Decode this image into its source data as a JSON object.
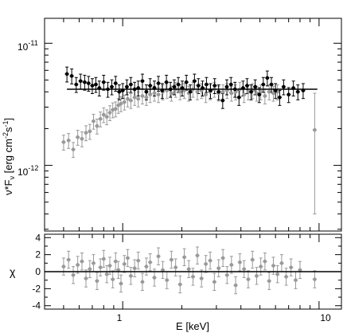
{
  "colors": {
    "axis": "#000000",
    "black_series": "#000000",
    "grey_series": "#999999",
    "background": "#ffffff"
  },
  "chart_data": [
    {
      "type": "scatter",
      "panel": "spectrum",
      "xlabel": "E [keV]",
      "ylabel": "ν*F_ν [erg cm⁻² s⁻¹]",
      "ylabel_parts": {
        "pre": "ν*F",
        "sub": "ν",
        "mid": " [erg cm",
        "sup1": "-2",
        "mid2": "s",
        "sup2": "-1",
        "post": "]"
      },
      "x_scale": "log",
      "y_scale": "log",
      "xlim": [
        0.4,
        13.0
      ],
      "ylim": [
        2.9e-13,
        1.6e-11
      ],
      "x_tick_labels": [
        {
          "value": 1,
          "label": "1"
        },
        {
          "value": 10,
          "label": "10"
        }
      ],
      "y_tick_labels": [
        {
          "value": 1e-11,
          "base": "10",
          "exp": "-11"
        },
        {
          "value": 1e-12,
          "base": "10",
          "exp": "-12"
        }
      ],
      "grid": false,
      "series": [
        {
          "color": "black",
          "x": [
            0.52,
            0.55,
            0.58,
            0.61,
            0.64,
            0.67,
            0.7,
            0.73,
            0.76,
            0.8,
            0.84,
            0.88,
            0.92,
            0.96,
            1.0,
            1.05,
            1.1,
            1.15,
            1.2,
            1.26,
            1.32,
            1.38,
            1.45,
            1.52,
            1.59,
            1.67,
            1.75,
            1.83,
            1.92,
            2.01,
            2.11,
            2.21,
            2.32,
            2.43,
            2.55,
            2.67,
            2.8,
            2.94,
            3.08,
            3.23,
            3.39,
            3.56,
            3.73,
            3.91,
            4.1,
            4.3,
            4.51,
            4.73,
            4.96,
            5.2,
            5.45,
            5.72,
            6.0,
            6.3,
            6.6,
            7.0,
            7.4,
            7.8,
            8.3
          ],
          "y": [
            5.6e-12,
            5.4e-12,
            4.6e-12,
            4.9e-12,
            4.8e-12,
            4.7e-12,
            4.5e-12,
            4.6e-12,
            4.3e-12,
            4.8e-12,
            4.2e-12,
            4.4e-12,
            4.7e-12,
            4e-12,
            4.1e-12,
            4.4e-12,
            4.6e-12,
            4.2e-12,
            4.3e-12,
            4.9e-12,
            4e-12,
            4.5e-12,
            4.3e-12,
            4.7e-12,
            4.1e-12,
            4.8e-12,
            4.2e-12,
            4.4e-12,
            4.6e-12,
            4.3e-12,
            4.8e-12,
            4e-12,
            4.9e-12,
            4.5e-12,
            4.3e-12,
            4.6e-12,
            4.1e-12,
            4.5e-12,
            4e-12,
            3.4e-12,
            4.4e-12,
            4.6e-12,
            4.2e-12,
            3.6e-12,
            4.3e-12,
            4.5e-12,
            4e-12,
            4.4e-12,
            3.8e-12,
            4.6e-12,
            5.2e-12,
            4.6e-12,
            4.1e-12,
            3.6e-12,
            4.4e-12,
            3.8e-12,
            4.3e-12,
            4e-12,
            4.1e-12
          ],
          "yerr_frac": 0.14
        },
        {
          "color": "grey",
          "x": [
            0.5,
            0.53,
            0.56,
            0.59,
            0.62,
            0.65,
            0.68,
            0.71,
            0.74,
            0.77,
            0.8,
            0.83,
            0.86,
            0.89,
            0.92,
            0.95,
            0.98,
            1.02,
            1.06,
            1.1,
            1.15,
            1.2,
            1.26,
            1.32,
            1.38,
            1.45,
            1.52,
            1.6,
            1.68,
            1.77,
            1.86,
            1.96,
            2.06,
            2.17,
            2.28,
            2.4,
            2.52,
            2.65,
            2.79,
            2.93,
            3.08,
            3.24,
            3.4,
            3.58,
            3.76,
            3.95,
            4.15,
            4.36,
            4.58,
            4.81,
            5.05,
            5.3,
            5.57,
            5.85,
            6.14,
            9.5
          ],
          "y": [
            1.55e-12,
            1.6e-12,
            1.35e-12,
            1.7e-12,
            1.65e-12,
            1.85e-12,
            1.9e-12,
            2.3e-12,
            2.1e-12,
            2.4e-12,
            2.6e-12,
            2.5e-12,
            2.7e-12,
            2.85e-12,
            2.9e-12,
            3.1e-12,
            3.2e-12,
            3.3e-12,
            3.5e-12,
            3.4e-12,
            3.6e-12,
            3.5e-12,
            3.7e-12,
            3.6e-12,
            3.8e-12,
            3.9e-12,
            3.8e-12,
            4e-12,
            4.1e-12,
            3.9e-12,
            4.2e-12,
            4e-12,
            4.1e-12,
            3.9e-12,
            4.2e-12,
            4e-12,
            4.1e-12,
            3.8e-12,
            4e-12,
            4.2e-12,
            3.9e-12,
            4e-12,
            4.1e-12,
            3.9e-12,
            4e-12,
            4.2e-12,
            3.8e-12,
            4e-12,
            4.1e-12,
            3.9e-12,
            4e-12,
            3.7e-12,
            4e-12,
            3.9e-12,
            4e-12,
            1.95e-12
          ],
          "yerr_frac": 0.14,
          "last_point_yerr": [
            4e-13,
            3.9e-12
          ]
        }
      ],
      "model_line": {
        "x": [
          0.52,
          9.8
        ],
        "y": [
          4.2e-12,
          4.2e-12
        ]
      }
    },
    {
      "type": "scatter",
      "panel": "residuals",
      "ylabel": "χ",
      "x_scale": "log",
      "xlim": [
        0.4,
        13.0
      ],
      "ylim": [
        -4.4,
        4.4
      ],
      "y_tick_labels": [
        4,
        2,
        0,
        -2,
        -4
      ],
      "zero_line": 0,
      "grid": false,
      "series": [
        {
          "color": "grey",
          "x": [
            0.5,
            0.53,
            0.56,
            0.59,
            0.62,
            0.65,
            0.68,
            0.71,
            0.74,
            0.77,
            0.8,
            0.83,
            0.86,
            0.89,
            0.92,
            0.95,
            0.98,
            1.02,
            1.06,
            1.1,
            1.15,
            1.2,
            1.26,
            1.32,
            1.38,
            1.45,
            1.52,
            1.6,
            1.68,
            1.77,
            1.86,
            1.96,
            2.06,
            2.17,
            2.28,
            2.4,
            2.52,
            2.65,
            2.79,
            2.93,
            3.08,
            3.24,
            3.4,
            3.58,
            3.76,
            3.95,
            4.15,
            4.36,
            4.58,
            4.81,
            5.05,
            5.3,
            5.57,
            5.85,
            6.14,
            6.45,
            6.8,
            7.2,
            7.6,
            8.0,
            9.5
          ],
          "y": [
            0.6,
            1.4,
            -0.4,
            0.8,
            1.2,
            -0.8,
            0.3,
            1.0,
            -1.1,
            0.5,
            1.5,
            -0.3,
            0.7,
            -0.9,
            1.2,
            0.2,
            -1.4,
            0.9,
            1.6,
            -0.5,
            0.4,
            1.3,
            -1.2,
            0.6,
            1.1,
            -0.7,
            1.8,
            0.2,
            -1.0,
            1.4,
            0.5,
            -1.5,
            1.7,
            0.3,
            -0.6,
            1.9,
            -0.8,
            0.9,
            1.3,
            -1.2,
            0.4,
            1.6,
            -0.4,
            0.8,
            -1.6,
            1.1,
            0.3,
            -0.9,
            1.4,
            -0.5,
            0.6,
            1.2,
            -1.1,
            0.7,
            -0.3,
            1.0,
            -0.6,
            0.5,
            -1.0,
            0.2,
            -0.9
          ],
          "yerr": 1.0
        }
      ]
    }
  ]
}
